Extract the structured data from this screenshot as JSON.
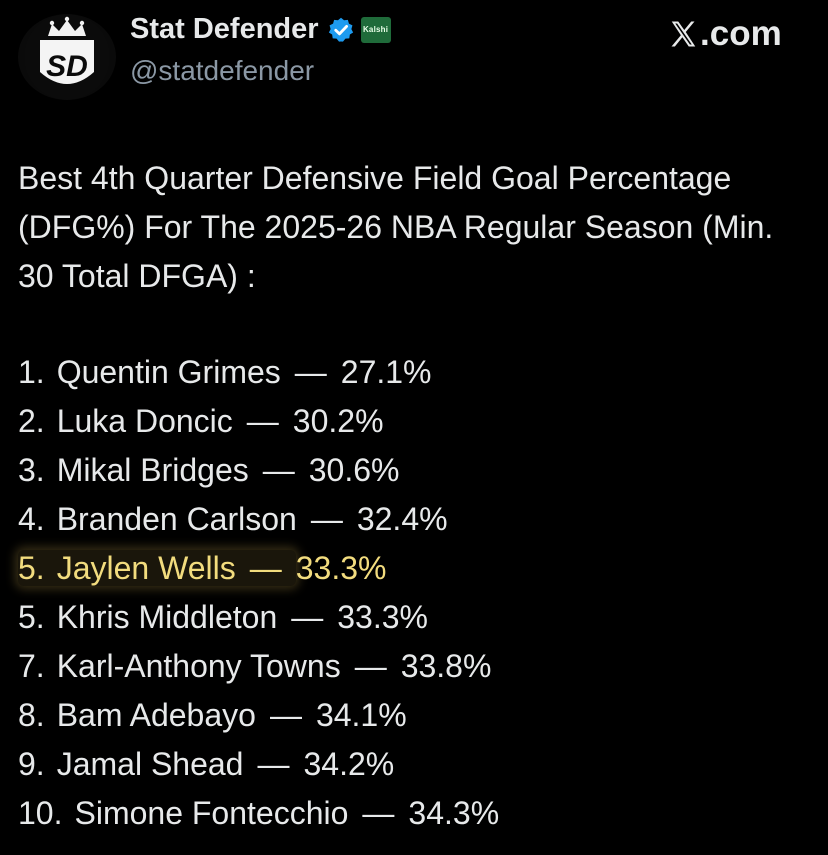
{
  "author": {
    "display_name": "Stat Defender",
    "handle": "@statdefender",
    "avatar_initials": "SD",
    "badge_label": "Kalshi"
  },
  "source": {
    "label": ".com"
  },
  "headline": "Best 4th Quarter Defensive Field Goal Percentage (DFG%) For The 2025-26 NBA Regular Season (Min. 30 Total DFGA) :",
  "ranking": [
    {
      "rank": "1.",
      "name": "Quentin Grimes",
      "dash": "—",
      "value": "27.1%"
    },
    {
      "rank": "2.",
      "name": "Luka Doncic",
      "dash": "—",
      "value": "30.2%"
    },
    {
      "rank": "3.",
      "name": "Mikal Bridges",
      "dash": "—",
      "value": "30.6%"
    },
    {
      "rank": "4.",
      "name": "Branden Carlson",
      "dash": "—",
      "value": "32.4%"
    },
    {
      "rank": "5.",
      "name": "Jaylen Wells",
      "dash": "—",
      "value": "33.3%",
      "highlighted": true
    },
    {
      "rank": "5.",
      "name": "Khris Middleton",
      "dash": "—",
      "value": "33.3%"
    },
    {
      "rank": "7.",
      "name": "Karl-Anthony Towns",
      "dash": "—",
      "value": "33.8%"
    },
    {
      "rank": "8.",
      "name": "Bam Adebayo",
      "dash": "—",
      "value": "34.1%"
    },
    {
      "rank": "9.",
      "name": "Jamal Shead",
      "dash": "—",
      "value": "34.2%"
    },
    {
      "rank": "10.",
      "name": "Simone Fontecchio",
      "dash": "—",
      "value": "34.3%"
    }
  ],
  "colors": {
    "background": "#000000",
    "text": "#e7e9ea",
    "handle": "#8b98a5",
    "verified": "#1d9bf0",
    "highlight": "#f2dc7e",
    "kalshi_badge": "#1f6b3a"
  },
  "icons": {
    "verified": "verified-badge-icon",
    "source": "x-logo-icon",
    "avatar": "crown-icon"
  }
}
